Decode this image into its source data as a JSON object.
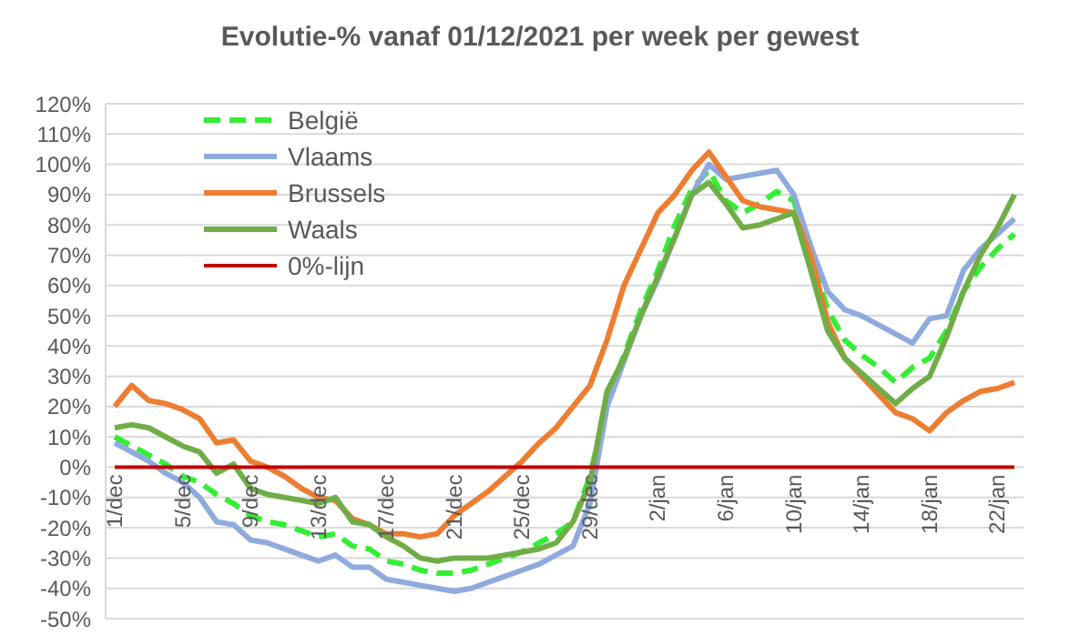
{
  "chart_data": {
    "type": "line",
    "title": "Evolutie-% vanaf 01/12/2021 per week per gewest",
    "categories": [
      "1/dec",
      null,
      null,
      null,
      "5/dec",
      null,
      null,
      null,
      "9/dec",
      null,
      null,
      null,
      "13/dec",
      null,
      null,
      null,
      "17/dec",
      null,
      null,
      null,
      "21/dec",
      null,
      null,
      null,
      "25/dec",
      null,
      null,
      null,
      "29/dec",
      null,
      null,
      null,
      "2/jan",
      null,
      null,
      null,
      "6/jan",
      null,
      null,
      null,
      "10/jan",
      null,
      null,
      null,
      "14/jan",
      null,
      null,
      null,
      "18/jan",
      null,
      null,
      null,
      "22/jan",
      null
    ],
    "series": [
      {
        "name": "België",
        "color": "#33ee33",
        "line_style": "dashed",
        "values": [
          10,
          7,
          4,
          1,
          -3,
          -5,
          -9,
          -12,
          -16,
          -18,
          -19,
          -21,
          -23,
          -22,
          -26,
          -27,
          -31,
          -32,
          -34,
          -35,
          -35,
          -34,
          -32,
          -30,
          -28,
          -25,
          -22,
          -18,
          -3,
          22,
          37,
          52,
          65,
          80,
          92,
          98,
          88,
          84,
          87,
          91,
          88,
          70,
          52,
          42,
          37,
          33,
          28,
          33,
          36,
          45,
          58,
          66,
          72,
          77
        ]
      },
      {
        "name": "Vlaams",
        "color": "#8faadc",
        "values": [
          8,
          5,
          2,
          -2,
          -5,
          -10,
          -18,
          -19,
          -24,
          -25,
          -27,
          -29,
          -31,
          -29,
          -33,
          -33,
          -37,
          -38,
          -39,
          -40,
          -41,
          -40,
          -38,
          -36,
          -34,
          -32,
          -29,
          -26,
          -12,
          20,
          35,
          50,
          62,
          76,
          90,
          100,
          95,
          96,
          97,
          98,
          90,
          73,
          58,
          52,
          50,
          47,
          44,
          41,
          49,
          50,
          65,
          72,
          77,
          82
        ]
      },
      {
        "name": "Brussels",
        "color": "#ed7d31",
        "values": [
          20,
          27,
          22,
          21,
          19,
          16,
          8,
          9,
          2,
          0,
          -3,
          -7,
          -10,
          -11,
          -17,
          -19,
          -22,
          -22,
          -23,
          -22,
          -16,
          -12,
          -8,
          -3,
          2,
          8,
          13,
          20,
          27,
          42,
          60,
          72,
          84,
          90,
          98,
          104,
          96,
          88,
          86,
          85,
          84,
          70,
          48,
          36,
          30,
          24,
          18,
          16,
          12,
          18,
          22,
          25,
          26,
          28
        ]
      },
      {
        "name": "Waals",
        "color": "#70ad47",
        "values": [
          13,
          14,
          13,
          10,
          7,
          5,
          -2,
          1,
          -7,
          -9,
          -10,
          -11,
          -12,
          -10,
          -18,
          -19,
          -23,
          -26,
          -30,
          -31,
          -30,
          -30,
          -30,
          -29,
          -28,
          -27,
          -25,
          -18,
          -5,
          25,
          36,
          50,
          63,
          76,
          90,
          94,
          87,
          79,
          80,
          82,
          84,
          65,
          45,
          36,
          31,
          26,
          21,
          26,
          30,
          43,
          58,
          70,
          79,
          90
        ]
      },
      {
        "name": "0%-lijn",
        "color": "#c00000",
        "values": [
          0,
          0,
          0,
          0,
          0,
          0,
          0,
          0,
          0,
          0,
          0,
          0,
          0,
          0,
          0,
          0,
          0,
          0,
          0,
          0,
          0,
          0,
          0,
          0,
          0,
          0,
          0,
          0,
          0,
          0,
          0,
          0,
          0,
          0,
          0,
          0,
          0,
          0,
          0,
          0,
          0,
          0,
          0,
          0,
          0,
          0,
          0,
          0,
          0,
          0,
          0,
          0,
          0,
          0
        ]
      }
    ],
    "ylim": [
      -50,
      120
    ],
    "yticks": [
      {
        "value": -50,
        "label": "-50%"
      },
      {
        "value": -40,
        "label": "-40%"
      },
      {
        "value": -30,
        "label": "-30%"
      },
      {
        "value": -20,
        "label": "-20%"
      },
      {
        "value": -10,
        "label": "-10%"
      },
      {
        "value": 0,
        "label": "0%"
      },
      {
        "value": 10,
        "label": "10%"
      },
      {
        "value": 20,
        "label": "20%"
      },
      {
        "value": 30,
        "label": "30%"
      },
      {
        "value": 40,
        "label": "40%"
      },
      {
        "value": 50,
        "label": "50%"
      },
      {
        "value": 60,
        "label": "60%"
      },
      {
        "value": 70,
        "label": "70%"
      },
      {
        "value": 80,
        "label": "80%"
      },
      {
        "value": 90,
        "label": "90%"
      },
      {
        "value": 100,
        "label": "100%"
      },
      {
        "value": 110,
        "label": "110%"
      },
      {
        "value": 120,
        "label": "120%"
      }
    ],
    "grid": "y",
    "legend": "top left",
    "marker": "none"
  }
}
